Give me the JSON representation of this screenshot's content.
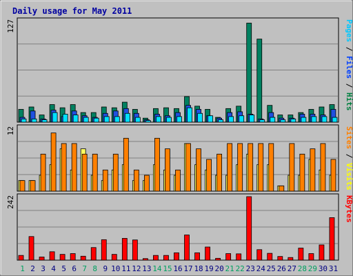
{
  "chart_data": {
    "type": "bar",
    "title": "Daily usage for May 2011",
    "days": [
      "1",
      "2",
      "3",
      "4",
      "5",
      "6",
      "7",
      "8",
      "9",
      "10",
      "11",
      "12",
      "13",
      "14",
      "15",
      "16",
      "17",
      "18",
      "19",
      "20",
      "21",
      "22",
      "23",
      "24",
      "25",
      "26",
      "27",
      "28",
      "29",
      "30",
      "31"
    ],
    "weekend_days": [
      "1",
      "7",
      "8",
      "14",
      "15",
      "21",
      "22",
      "28",
      "29"
    ],
    "panels": [
      {
        "id": "panel-pages-files-hits",
        "ymax_label": "127",
        "ymax": 127,
        "right_label": [
          {
            "text": "Pages",
            "color": "#00c8ff"
          },
          {
            "text": " / ",
            "color": "#000000"
          },
          {
            "text": "Files",
            "color": "#0040ff"
          },
          {
            "text": " / ",
            "color": "#000000"
          },
          {
            "text": "Hits",
            "color": "#008040"
          }
        ],
        "series": [
          {
            "color": "#008060",
            "values": [
              16,
              19,
              9,
              22,
              18,
              22,
              12,
              12,
              19,
              18,
              25,
              16,
              5,
              17,
              18,
              17,
              32,
              20,
              16,
              6,
              17,
              20,
              124,
              104,
              21,
              9,
              9,
              12,
              16,
              19,
              22
            ]
          },
          {
            "color": "#2050e0",
            "values": [
              6,
              14,
              4,
              15,
              7,
              14,
              8,
              6,
              11,
              14,
              17,
              11,
              3,
              10,
              8,
              12,
              21,
              16,
              8,
              5,
              12,
              13,
              10,
              4,
              12,
              5,
              5,
              10,
              10,
              9,
              16
            ]
          },
          {
            "color": "#00e0ff",
            "values": [
              4,
              4,
              3,
              12,
              10,
              9,
              6,
              5,
              7,
              7,
              11,
              6,
              2,
              7,
              6,
              7,
              18,
              11,
              8,
              3,
              7,
              8,
              9,
              3,
              6,
              3,
              4,
              6,
              7,
              7,
              6
            ]
          }
        ]
      },
      {
        "id": "panel-visits-sites",
        "ymax_label": "12",
        "ymax": 12,
        "right_label": [
          {
            "text": "Sites",
            "color": "#ff8000"
          },
          {
            "text": " / ",
            "color": "#000000"
          },
          {
            "text": "Visits",
            "color": "#ffff00"
          }
        ],
        "series": [
          {
            "color": "#ffff60",
            "values": [
              2,
              2,
              3,
              5,
              8,
              4,
              8,
              3,
              2,
              4,
              5,
              2,
              2,
              5,
              4,
              3,
              9,
              5,
              4,
              3,
              3,
              5,
              7,
              5,
              5,
              1,
              3,
              3,
              6,
              4,
              3
            ]
          },
          {
            "color": "#ff8000",
            "values": [
              2,
              2,
              7,
              11,
              9,
              9,
              7,
              7,
              4,
              7,
              10,
              4,
              3,
              10,
              8,
              4,
              9,
              8,
              6,
              7,
              9,
              9,
              9,
              9,
              9,
              1,
              9,
              7,
              8,
              9,
              6
            ]
          }
        ]
      },
      {
        "id": "panel-kbytes",
        "ymax_label": "242",
        "ymax": 242,
        "right_label": [
          {
            "text": "KBytes",
            "color": "#ff0000"
          }
        ],
        "series": [
          {
            "color": "#ff0000",
            "values": [
              18,
              90,
              12,
              32,
              22,
              25,
              15,
              48,
              78,
              22,
              83,
              77,
              6,
              18,
              18,
              28,
              96,
              28,
              50,
              7,
              25,
              24,
              242,
              40,
              26,
              14,
              10,
              46,
              25,
              58,
              162
            ]
          }
        ]
      }
    ]
  }
}
